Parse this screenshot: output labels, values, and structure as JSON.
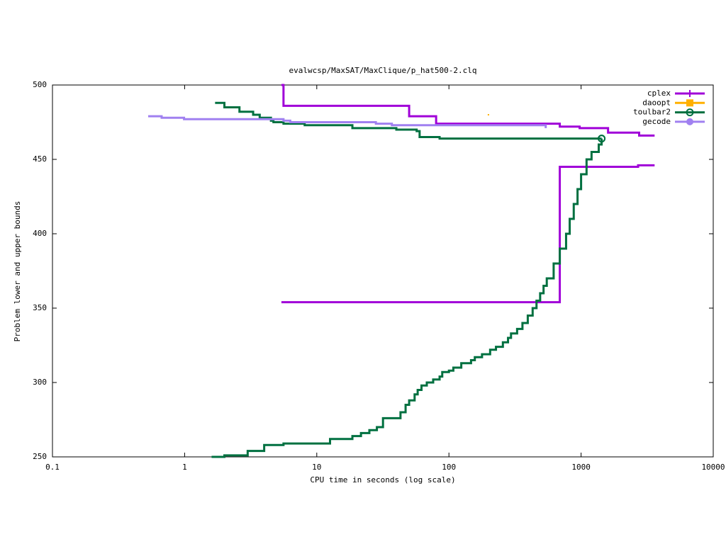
{
  "chart_data": {
    "type": "step",
    "title": "evalwcsp/MaxSAT/MaxClique/p_hat500-2.clq",
    "x_label": "CPU time in seconds (log scale)",
    "y_label": "Problem lower and upper bounds",
    "xscale": "log",
    "xlim": [
      0.1,
      10000
    ],
    "xticks": [
      0.1,
      1,
      10,
      100,
      1000,
      10000
    ],
    "ylim": [
      250,
      500
    ],
    "yticks": [
      250,
      300,
      350,
      400,
      450,
      500
    ],
    "grid": false,
    "legend": "top-right",
    "series": [
      {
        "name": "cplex",
        "color": "#a000d8",
        "marker": "plus",
        "x": [
          5.4,
          5.6,
          50,
          80,
          690,
          975,
          1600,
          2750,
          3600,
          null,
          5.4,
          690,
          2700,
          3600
        ],
        "values": [
          500,
          486,
          479,
          474,
          472,
          471,
          468,
          466,
          466,
          null,
          354,
          445,
          446,
          446
        ]
      },
      {
        "name": "daoopt",
        "color": "#ffb000",
        "marker": "square",
        "x": [
          199
        ],
        "values": [
          480
        ]
      },
      {
        "name": "toulbar2",
        "color": "#007040",
        "marker": "circle",
        "x": [
          1.7,
          2.0,
          2.6,
          3.3,
          3.7,
          4.5,
          4.7,
          5.6,
          8.1,
          18.6,
          40,
          57,
          60,
          85,
          1430,
          null,
          1.6,
          2.0,
          3.0,
          4.0,
          5.6,
          12.6,
          18.6,
          21.6,
          25,
          28.5,
          31.7,
          43,
          47,
          50,
          55,
          58,
          62,
          68,
          76,
          85,
          89,
          100,
          108,
          124,
          147,
          157,
          178,
          205,
          227,
          256,
          280,
          295,
          328,
          360,
          395,
          430,
          460,
          490,
          520,
          550,
          620,
          690,
          770,
          820,
          880,
          940,
          1000,
          1100,
          1200,
          1360,
          1430
        ],
        "values": [
          488,
          485,
          482,
          480,
          478,
          476,
          475,
          474,
          473,
          471,
          470,
          469,
          465,
          464,
          464,
          null,
          250,
          251,
          254,
          258,
          259,
          262,
          264,
          266,
          268,
          270,
          276,
          280,
          285,
          288,
          292,
          295,
          298,
          300,
          302,
          304,
          307,
          308,
          310,
          313,
          315,
          317,
          319,
          322,
          324,
          327,
          330,
          333,
          336,
          340,
          345,
          350,
          355,
          360,
          365,
          370,
          380,
          390,
          400,
          410,
          420,
          430,
          440,
          450,
          455,
          460,
          464
        ]
      },
      {
        "name": "gecode",
        "color": "#a080f0",
        "marker": "dot",
        "x": [
          0.53,
          0.67,
          0.99,
          5.6,
          6.3,
          28,
          37,
          540
        ],
        "values": [
          479,
          478,
          477,
          476,
          475,
          474,
          473,
          471
        ]
      }
    ]
  }
}
